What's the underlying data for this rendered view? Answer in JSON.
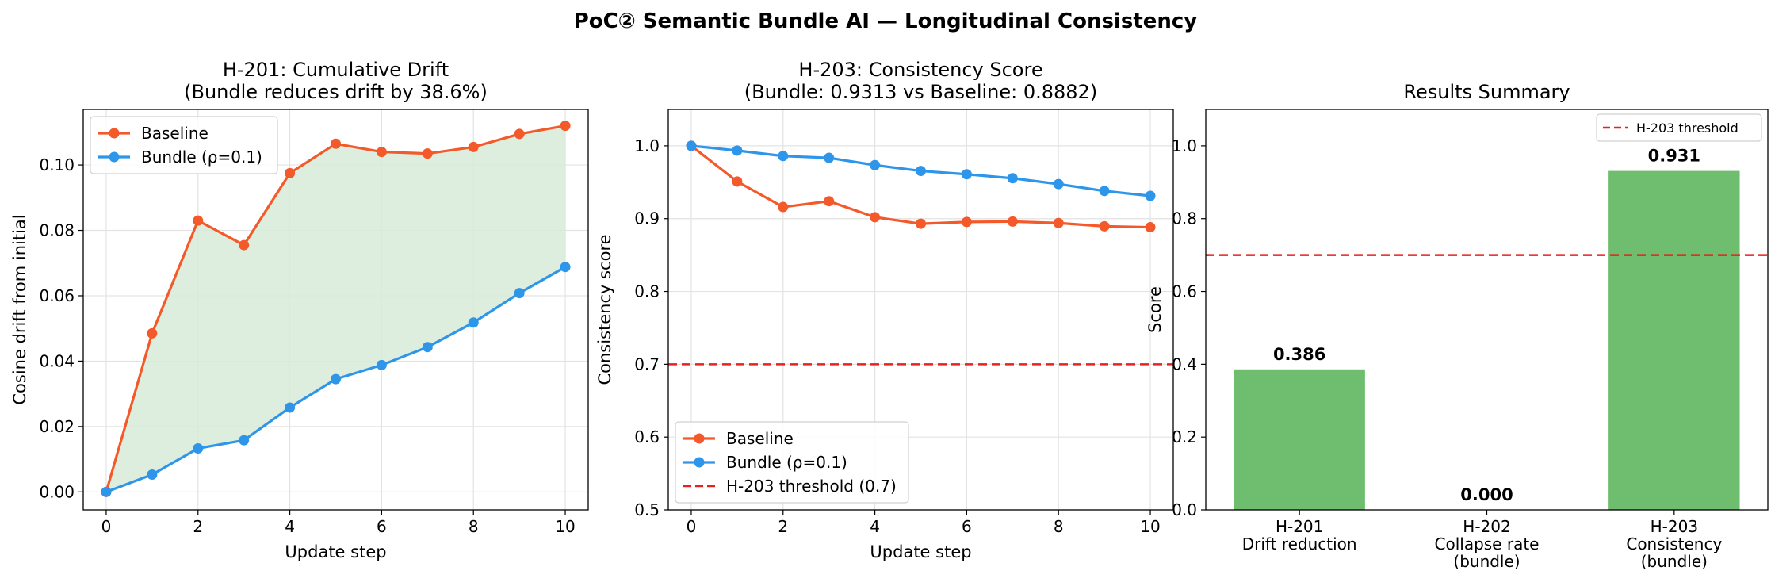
{
  "title": "PoC② Semantic Bundle AI — Longitudinal Consistency",
  "colors": {
    "baseline": "#f4592a",
    "bundle": "#2d96ea",
    "threshold": "#e8201e",
    "bar": "#6fbe6f",
    "fill": "#d8ebd8"
  },
  "chart_data": [
    {
      "type": "line",
      "title": "H-201: Cumulative Drift",
      "subtitle": "(Bundle reduces drift by 38.6%)",
      "xlabel": "Update step",
      "ylabel": "Cosine drift from initial",
      "x": [
        0,
        1,
        2,
        3,
        4,
        5,
        6,
        7,
        8,
        9,
        10
      ],
      "xlim": [
        -0.5,
        10.5
      ],
      "ylim": [
        -0.0055,
        0.117
      ],
      "xticks": [
        0,
        2,
        4,
        6,
        8,
        10
      ],
      "xtick_labels": [
        "0",
        "2",
        "4",
        "6",
        "8",
        "10"
      ],
      "yticks": [
        0.0,
        0.02,
        0.04,
        0.06,
        0.08,
        0.1
      ],
      "ytick_labels": [
        "0.00",
        "0.02",
        "0.04",
        "0.06",
        "0.08",
        "0.10"
      ],
      "grid": true,
      "fill_between": true,
      "legend": "top-left",
      "series": [
        {
          "name": "Baseline",
          "color": "#f4592a",
          "values": [
            0.0,
            0.0485,
            0.083,
            0.0755,
            0.0975,
            0.1065,
            0.104,
            0.1035,
            0.1055,
            0.1095,
            0.112
          ]
        },
        {
          "name": "Bundle (ρ=0.1)",
          "color": "#2d96ea",
          "values": [
            0.0,
            0.0053,
            0.0133,
            0.0158,
            0.0258,
            0.0345,
            0.0388,
            0.0443,
            0.0518,
            0.0608,
            0.0688
          ]
        }
      ]
    },
    {
      "type": "line",
      "title": "H-203: Consistency Score",
      "subtitle": "(Bundle: 0.9313 vs Baseline: 0.8882)",
      "xlabel": "Update step",
      "ylabel": "Consistency score",
      "x": [
        0,
        1,
        2,
        3,
        4,
        5,
        6,
        7,
        8,
        9,
        10
      ],
      "xlim": [
        -0.5,
        10.5
      ],
      "ylim": [
        0.5,
        1.05
      ],
      "xticks": [
        0,
        2,
        4,
        6,
        8,
        10
      ],
      "xtick_labels": [
        "0",
        "2",
        "4",
        "6",
        "8",
        "10"
      ],
      "yticks": [
        0.5,
        0.6,
        0.7,
        0.8,
        0.9,
        1.0
      ],
      "ytick_labels": [
        "0.5",
        "0.6",
        "0.7",
        "0.8",
        "0.9",
        "1.0"
      ],
      "grid": true,
      "legend": "bottom-left",
      "threshold": {
        "value": 0.7,
        "label": "H-203 threshold (0.7)",
        "color": "#e8201e"
      },
      "series": [
        {
          "name": "Baseline",
          "color": "#f4592a",
          "values": [
            1.0,
            0.951,
            0.916,
            0.924,
            0.902,
            0.893,
            0.8955,
            0.896,
            0.894,
            0.8895,
            0.8882
          ]
        },
        {
          "name": "Bundle (ρ=0.1)",
          "color": "#2d96ea",
          "values": [
            1.0,
            0.9935,
            0.986,
            0.9835,
            0.9735,
            0.9655,
            0.961,
            0.9555,
            0.9475,
            0.938,
            0.9313
          ]
        }
      ]
    },
    {
      "type": "bar",
      "title": "Results Summary",
      "ylabel": "Score",
      "categories": [
        [
          "H-201",
          "Drift reduction"
        ],
        [
          "H-202",
          "Collapse rate",
          "(bundle)"
        ],
        [
          "H-203",
          "Consistency",
          "(bundle)"
        ]
      ],
      "values": [
        0.386,
        0.0,
        0.931
      ],
      "value_labels": [
        "0.386",
        "0.000",
        "0.931"
      ],
      "ylim": [
        0.0,
        1.1
      ],
      "yticks": [
        0.0,
        0.2,
        0.4,
        0.6,
        0.8,
        1.0
      ],
      "ytick_labels": [
        "0.0",
        "0.2",
        "0.4",
        "0.6",
        "0.8",
        "1.0"
      ],
      "grid": false,
      "legend": "top-right",
      "threshold": {
        "value": 0.7,
        "label": "H-203 threshold",
        "color": "#e8201e"
      },
      "color": "#6fbe6f"
    }
  ]
}
